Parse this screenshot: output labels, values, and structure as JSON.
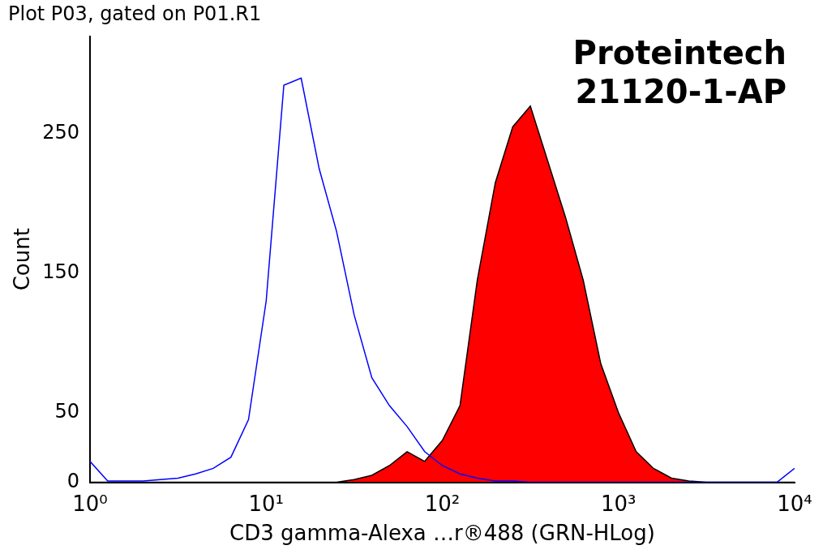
{
  "chart_data": {
    "type": "histogram",
    "title": "Plot P03, gated on P01.R1",
    "annotation": [
      "Proteintech",
      "21120-1-AP"
    ],
    "x_label": "CD3 gamma-Alexa …r®488 (GRN-HLog)",
    "y_label": "Count",
    "log": "x",
    "grid": false,
    "x": [
      1,
      1.26,
      1.58,
      2,
      2.51,
      3.16,
      3.98,
      5.01,
      6.31,
      7.94,
      10,
      12.6,
      15.8,
      20,
      25.1,
      31.6,
      39.8,
      50.1,
      63.1,
      79.4,
      100,
      126,
      158,
      200,
      251,
      316,
      398,
      501,
      631,
      794,
      1000,
      1260,
      1580,
      2000,
      2510,
      3160,
      3980,
      5010,
      6310,
      7940,
      10000
    ],
    "series": [
      {
        "type": "line",
        "color": "#0000ff",
        "values": [
          15,
          1,
          1,
          1,
          2,
          3,
          6,
          10,
          18,
          45,
          130,
          285,
          290,
          225,
          180,
          120,
          75,
          55,
          40,
          22,
          12,
          6,
          3,
          1,
          1,
          0,
          0,
          0,
          0,
          0,
          0,
          0,
          0,
          0,
          0,
          0,
          0,
          0,
          0,
          0,
          10
        ]
      },
      {
        "type": "area",
        "color": "#ff0000",
        "values": [
          0,
          0,
          0,
          0,
          0,
          0,
          0,
          0,
          0,
          0,
          0,
          0,
          0,
          0,
          0,
          2,
          5,
          12,
          22,
          15,
          30,
          55,
          145,
          215,
          255,
          270,
          230,
          190,
          145,
          85,
          50,
          22,
          10,
          3,
          1,
          0,
          0,
          0,
          0,
          0,
          0
        ]
      }
    ],
    "xlim": [
      1,
      10000
    ],
    "xticks": [
      {
        "value": 1,
        "label": "10⁰"
      },
      {
        "value": 10,
        "label": "10¹"
      },
      {
        "value": 100,
        "label": "10²"
      },
      {
        "value": 1000,
        "label": "10³"
      },
      {
        "value": 10000,
        "label": "10⁴"
      }
    ],
    "ylim": [
      0,
      320
    ],
    "yticks": [
      0,
      50,
      150,
      250
    ]
  }
}
